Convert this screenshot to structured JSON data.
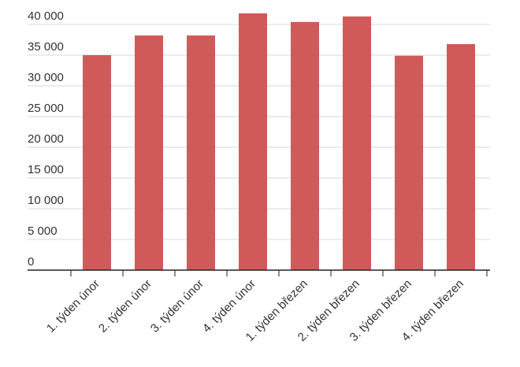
{
  "chart_data": {
    "type": "bar",
    "categories": [
      "1. týden únor",
      "2. týden únor",
      "3. týden únor",
      "4. týden únor",
      "1. týden březen",
      "2. týden březen",
      "3. týden březen",
      "4. týden březen"
    ],
    "values": [
      35000,
      38200,
      38200,
      41800,
      40400,
      41300,
      34900,
      36800
    ],
    "color": "#d05a5a",
    "ylim": [
      0,
      40000
    ],
    "yticks": [
      {
        "value": 0,
        "label": "0"
      },
      {
        "value": 5000,
        "label": "5 000"
      },
      {
        "value": 10000,
        "label": "10 000"
      },
      {
        "value": 15000,
        "label": "15 000"
      },
      {
        "value": 20000,
        "label": "20 000"
      },
      {
        "value": 25000,
        "label": "25 000"
      },
      {
        "value": 30000,
        "label": "30 000"
      },
      {
        "value": 35000,
        "label": "35 000"
      },
      {
        "value": 40000,
        "label": "40 000"
      }
    ],
    "grid": true
  }
}
